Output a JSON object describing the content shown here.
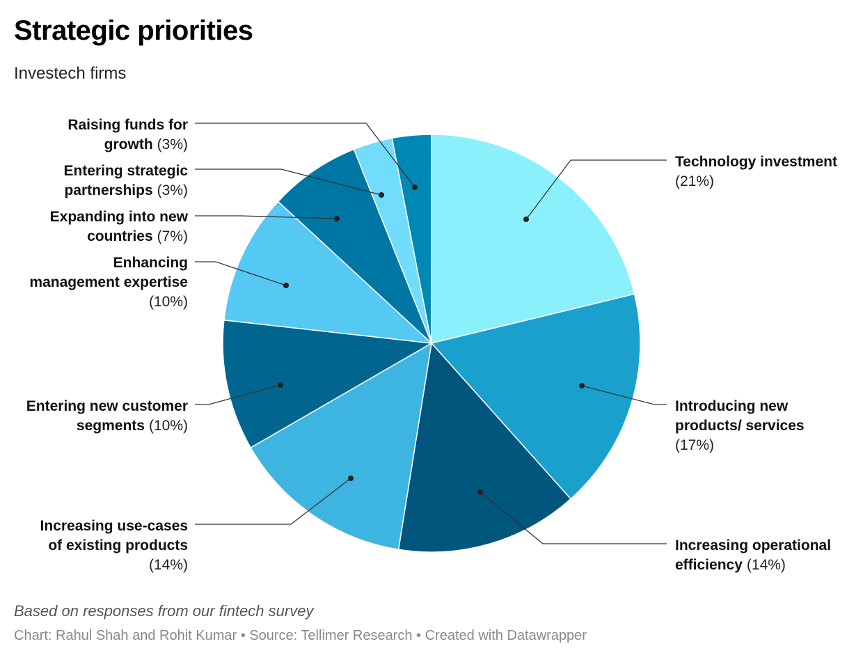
{
  "header": {
    "title": "Strategic priorities",
    "subtitle": "Investech firms"
  },
  "chart_data": {
    "type": "pie",
    "title": "Strategic priorities",
    "subtitle": "Investech firms",
    "unit": "%",
    "slices": [
      {
        "id": "technology-investment",
        "name": "Technology investment",
        "value": 21,
        "pct_label": "(21%)",
        "color": "#8af0fc",
        "label_lines": [
          [
            "Technology investment"
          ],
          [
            "(21%)"
          ]
        ]
      },
      {
        "id": "introducing-new-products",
        "name": "Introducing new products/ services",
        "value": 17,
        "pct_label": "(17%)",
        "color": "#1aa0cc",
        "label_lines": [
          [
            "Introducing new"
          ],
          [
            "products/ services"
          ],
          [
            "(17%)"
          ]
        ]
      },
      {
        "id": "increasing-operational-efficiency",
        "name": "Increasing operational efficiency",
        "value": 14,
        "pct_label": "(14%)",
        "color": "#01567e",
        "label_lines": [
          [
            "Increasing operational"
          ],
          [
            "efficiency",
            "(14%)"
          ]
        ]
      },
      {
        "id": "increasing-use-cases",
        "name": "Increasing use-cases of existing products",
        "value": 14,
        "pct_label": "(14%)",
        "color": "#3eb4e0",
        "label_lines": [
          [
            "Increasing use-cases"
          ],
          [
            "of existing products"
          ],
          [
            "(14%)"
          ]
        ]
      },
      {
        "id": "entering-new-customer-segments",
        "name": "Entering new customer segments",
        "value": 10,
        "pct_label": "(10%)",
        "color": "#006690",
        "label_lines": [
          [
            "Entering new customer"
          ],
          [
            "segments",
            "(10%)"
          ]
        ]
      },
      {
        "id": "enhancing-management-expertise",
        "name": "Enhancing management expertise",
        "value": 10,
        "pct_label": "(10%)",
        "color": "#55c8f4",
        "label_lines": [
          [
            "Enhancing"
          ],
          [
            "management expertise"
          ],
          [
            "(10%)"
          ]
        ]
      },
      {
        "id": "expanding-into-new-countries",
        "name": "Expanding into new countries",
        "value": 7,
        "pct_label": "(7%)",
        "color": "#0076a4",
        "label_lines": [
          [
            "Expanding into new"
          ],
          [
            "countries",
            "(7%)"
          ]
        ]
      },
      {
        "id": "entering-strategic-partnerships",
        "name": "Entering strategic partnerships",
        "value": 3,
        "pct_label": "(3%)",
        "color": "#72dcfc",
        "label_lines": [
          [
            "Entering strategic"
          ],
          [
            "partnerships",
            "(3%)"
          ]
        ]
      },
      {
        "id": "raising-funds-for-growth",
        "name": "Raising funds for growth",
        "value": 3,
        "pct_label": "(3%)",
        "color": "#0088b4",
        "label_lines": [
          [
            "Raising funds for"
          ],
          [
            "growth",
            "(3%)"
          ]
        ]
      }
    ]
  },
  "footer": {
    "note": "Based on responses from our fintech survey",
    "credit_chart": "Chart: Rahul Shah and Rohit Kumar",
    "credit_source": "Source: Tellimer Research",
    "credit_tool": "Created with Datawrapper",
    "separator": " • "
  }
}
